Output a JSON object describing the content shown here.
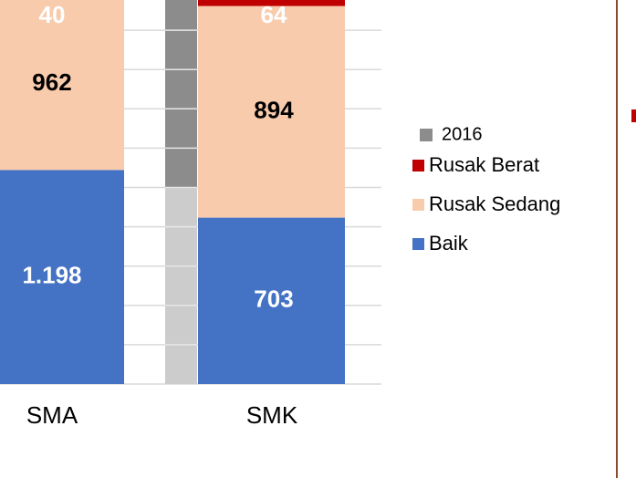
{
  "chart_data": {
    "type": "bar",
    "stack": "percent",
    "categories": [
      "SMA",
      "SMK"
    ],
    "series": [
      {
        "name": "Baik",
        "color": "#4472c4",
        "values": [
          1198,
          703
        ],
        "value_labels": [
          "1.198",
          "703"
        ],
        "label_color": "#ffffff"
      },
      {
        "name": "Rusak Sedang",
        "color": "#f8cbad",
        "values": [
          962,
          894
        ],
        "value_labels": [
          "962",
          "894"
        ],
        "label_color": "#000000"
      },
      {
        "name": "Rusak Berat",
        "color": "#c00000",
        "values": [
          40,
          64
        ],
        "value_labels": [
          "40",
          "64"
        ],
        "label_color": "#ffffff"
      }
    ],
    "other_legend": [
      {
        "name": "2016",
        "color": "#8c8c8c"
      }
    ],
    "grid": true
  }
}
